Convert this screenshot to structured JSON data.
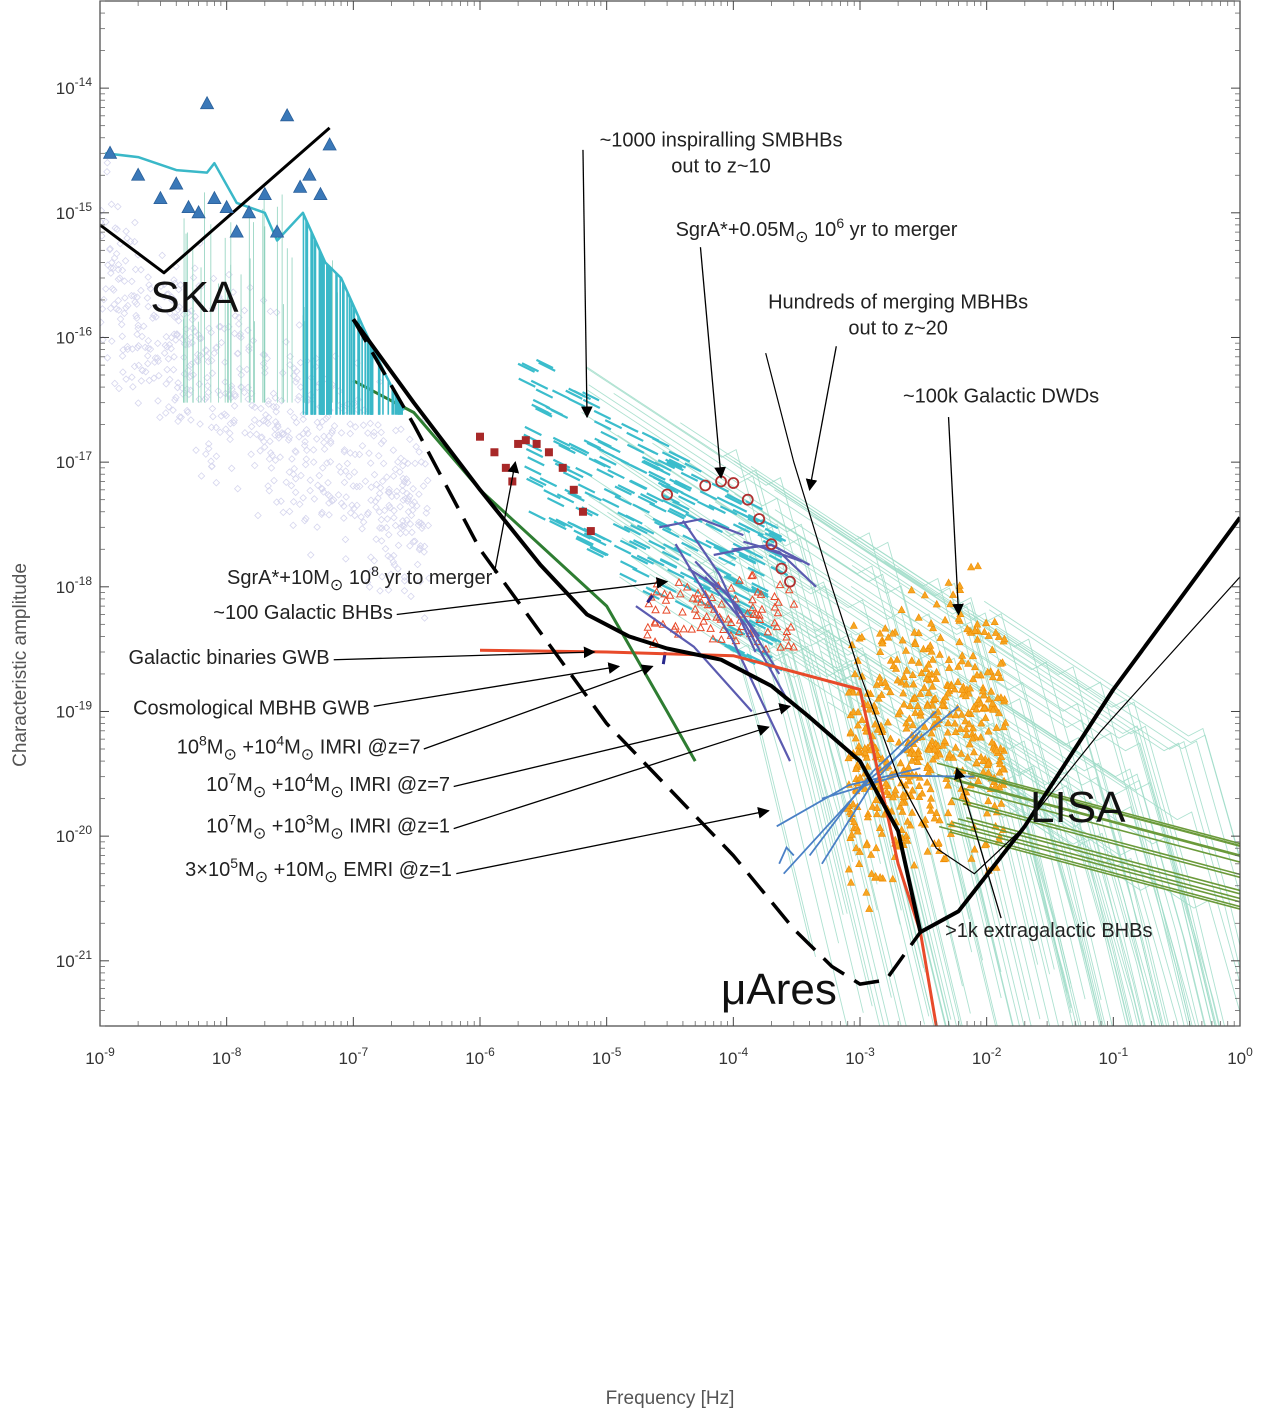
{
  "chart_data": {
    "type": "line",
    "xlabel": "Frequency [Hz]",
    "ylabel": "Characteristic amplitude",
    "x_scale": "log",
    "y_scale": "log",
    "xlim": [
      1e-09,
      1
    ],
    "ylim": [
      3e-22,
      5e-14
    ],
    "grid": false,
    "x_ticks": [
      {
        "value": 1e-09,
        "base": "10",
        "exp": "-9"
      },
      {
        "value": 1e-08,
        "base": "10",
        "exp": "-8"
      },
      {
        "value": 1e-07,
        "base": "10",
        "exp": "-7"
      },
      {
        "value": 1e-06,
        "base": "10",
        "exp": "-6"
      },
      {
        "value": 1e-05,
        "base": "10",
        "exp": "-5"
      },
      {
        "value": 0.0001,
        "base": "10",
        "exp": "-4"
      },
      {
        "value": 0.001,
        "base": "10",
        "exp": "-3"
      },
      {
        "value": 0.01,
        "base": "10",
        "exp": "-2"
      },
      {
        "value": 0.1,
        "base": "10",
        "exp": "-1"
      },
      {
        "value": 1,
        "base": "10",
        "exp": "0"
      }
    ],
    "y_ticks": [
      {
        "value": 1e-21,
        "base": "10",
        "exp": "-21"
      },
      {
        "value": 1e-20,
        "base": "10",
        "exp": "-20"
      },
      {
        "value": 1e-19,
        "base": "10",
        "exp": "-19"
      },
      {
        "value": 1e-18,
        "base": "10",
        "exp": "-18"
      },
      {
        "value": 1e-17,
        "base": "10",
        "exp": "-17"
      },
      {
        "value": 1e-16,
        "base": "10",
        "exp": "-16"
      },
      {
        "value": 1e-15,
        "base": "10",
        "exp": "-15"
      },
      {
        "value": 1e-14,
        "base": "10",
        "exp": "-14"
      }
    ],
    "detectors": [
      {
        "name": "SKA",
        "color": "#000000",
        "dashed": false,
        "width": 3,
        "points": [
          [
            1e-09,
            8e-16
          ],
          [
            3.2e-09,
            3.3e-16
          ],
          [
            6.5e-08,
            4.8e-15
          ]
        ],
        "label_at": [
          2.5e-09,
          1.6e-16
        ]
      },
      {
        "name": "LISA",
        "color": "#000000",
        "dashed": false,
        "width": 4,
        "points": [
          [
            1e-07,
            1.4e-16
          ],
          [
            3e-07,
            3e-17
          ],
          [
            1e-06,
            6e-18
          ],
          [
            3e-06,
            1.5e-18
          ],
          [
            7e-06,
            6e-19
          ],
          [
            1.5e-05,
            4e-19
          ],
          [
            3e-05,
            3.2e-19
          ],
          [
            8e-05,
            2.6e-19
          ],
          [
            0.0002,
            1.6e-19
          ],
          [
            0.0004,
            9e-20
          ],
          [
            0.001,
            4e-20
          ],
          [
            0.002,
            1.1e-20
          ],
          [
            0.003,
            1.7e-21
          ],
          [
            0.006,
            2.5e-21
          ],
          [
            0.02,
            1.2e-20
          ],
          [
            0.1,
            1.5e-19
          ],
          [
            1,
            3.6e-18
          ]
        ],
        "label_at": [
          0.022,
          1.3e-20
        ]
      },
      {
        "name": "μAres",
        "color": "#000000",
        "dashed": true,
        "width": 3.5,
        "points": [
          [
            1e-07,
            1.4e-16
          ],
          [
            3e-07,
            2e-17
          ],
          [
            1e-06,
            2e-18
          ],
          [
            1e-05,
            8e-20
          ],
          [
            0.0001,
            7e-21
          ],
          [
            0.0003,
            1.8e-21
          ],
          [
            0.0006,
            9e-22
          ],
          [
            0.001,
            6.5e-22
          ],
          [
            0.0016,
            7e-22
          ],
          [
            0.003,
            1.7e-21
          ]
        ],
        "label_at": [
          8e-05,
          4.5e-22
        ]
      }
    ],
    "series": [
      {
        "name": "Galactic binaries GWB",
        "color": "#e84a2a",
        "width": 3,
        "points": [
          [
            1e-06,
            3.1e-19
          ],
          [
            1e-05,
            3e-19
          ],
          [
            0.0001,
            2.8e-19
          ],
          [
            0.001,
            1.5e-19
          ],
          [
            0.002,
            6e-21
          ],
          [
            0.003,
            1.7e-21
          ],
          [
            0.004,
            3e-22
          ]
        ]
      },
      {
        "name": "Cosmological MBHB GWB",
        "color": "#2e7d32",
        "width": 3,
        "points": [
          [
            1e-07,
            4.5e-17
          ],
          [
            3e-07,
            2.5e-17
          ],
          [
            1e-06,
            6e-18
          ],
          [
            1e-05,
            7e-19
          ],
          [
            3e-05,
            1e-19
          ],
          [
            5e-05,
            4e-20
          ]
        ]
      },
      {
        "name": "",
        "color": "#3ab8c8",
        "width": 2.5,
        "points": [
          [
            1.1e-09,
            3e-15
          ],
          [
            2e-09,
            2.8e-15
          ],
          [
            4e-09,
            2.2e-15
          ],
          [
            7e-09,
            2.1e-15
          ],
          [
            8e-09,
            2.5e-15
          ],
          [
            1.2e-08,
            1.2e-15
          ],
          [
            2e-08,
            1e-15
          ],
          [
            2.5e-08,
            6e-16
          ],
          [
            4e-08,
            1e-15
          ],
          [
            6e-08,
            4e-16
          ],
          [
            8e-08,
            3e-16
          ],
          [
            1.2e-07,
            1.2e-16
          ],
          [
            1.8e-07,
            5e-17
          ],
          [
            2.5e-07,
            2.6e-17
          ]
        ]
      },
      {
        "name": "",
        "color": "#000000",
        "width": 1.2,
        "points": [
          [
            0.00018,
            7.5e-17
          ],
          [
            0.0003,
            1e-17
          ],
          [
            0.0006,
            1e-18
          ],
          [
            0.001,
            2e-19
          ],
          [
            0.002,
            3e-20
          ],
          [
            0.004,
            8e-21
          ],
          [
            0.008,
            5e-21
          ],
          [
            0.02,
            1.2e-20
          ],
          [
            0.08,
            7e-20
          ],
          [
            1,
            1.2e-18
          ]
        ]
      }
    ],
    "pta_points": [
      [
        1.2e-09,
        3e-15
      ],
      [
        2e-09,
        2e-15
      ],
      [
        3e-09,
        1.3e-15
      ],
      [
        4e-09,
        1.7e-15
      ],
      [
        5e-09,
        1.1e-15
      ],
      [
        7e-09,
        7.5e-15
      ],
      [
        6e-09,
        1e-15
      ],
      [
        8e-09,
        1.3e-15
      ],
      [
        1e-08,
        1.1e-15
      ],
      [
        1.2e-08,
        7e-16
      ],
      [
        1.5e-08,
        1e-15
      ],
      [
        2e-08,
        1.4e-15
      ],
      [
        2.5e-08,
        7e-16
      ],
      [
        3e-08,
        6e-15
      ],
      [
        3.8e-08,
        1.6e-15
      ],
      [
        4.5e-08,
        2e-15
      ],
      [
        5.5e-08,
        1.4e-15
      ],
      [
        6.5e-08,
        3.5e-15
      ]
    ],
    "sgra_10msun_points": [
      [
        1e-06,
        1.6e-17
      ],
      [
        1.3e-06,
        1.2e-17
      ],
      [
        1.6e-06,
        9e-18
      ],
      [
        1.8e-06,
        7e-18
      ],
      [
        2e-06,
        1.4e-17
      ],
      [
        2.3e-06,
        1.5e-17
      ],
      [
        2.8e-06,
        1.4e-17
      ],
      [
        3.5e-06,
        1.2e-17
      ],
      [
        4.5e-06,
        9e-18
      ],
      [
        5.5e-06,
        6e-18
      ],
      [
        6.5e-06,
        4e-18
      ],
      [
        7.5e-06,
        2.8e-18
      ]
    ],
    "sgra_005msun_points": [
      [
        3e-05,
        5.5e-18
      ],
      [
        6e-05,
        6.5e-18
      ],
      [
        8e-05,
        7e-18
      ],
      [
        0.0001,
        6.8e-18
      ],
      [
        0.00013,
        5e-18
      ],
      [
        0.00016,
        3.5e-18
      ],
      [
        0.0002,
        2.2e-18
      ],
      [
        0.00024,
        1.4e-18
      ],
      [
        0.00028,
        1.1e-18
      ]
    ],
    "annotations": [
      {
        "lines": [
          {
            "text": "~1000 inspiralling SMBHBs"
          },
          {
            "text": "out to z~10"
          }
        ],
        "anchor": "middle",
        "at": [
          8e-05,
          3.4e-15
        ],
        "arrow_from": [
          6.5e-06,
          3.2e-15
        ],
        "arrow_to": [
          7e-06,
          2.3e-17
        ]
      },
      {
        "lines": [
          {
            "parts": [
              {
                "t": "SgrA*+0.05M"
              },
              {
                "t": "⊙",
                "sub": true
              },
              {
                "t": "  10"
              },
              {
                "t": "6",
                "sup": true
              },
              {
                "t": " yr to merger"
              }
            ]
          }
        ],
        "anchor": "start",
        "at": [
          3.5e-05,
          6.5e-16
        ],
        "arrow_from": [
          5.5e-05,
          5.3e-16
        ],
        "arrow_to": [
          8e-05,
          7.5e-18
        ]
      },
      {
        "lines": [
          {
            "text": "Hundreds of merging MBHBs"
          },
          {
            "text": "out to z~20"
          }
        ],
        "anchor": "middle",
        "at": [
          0.002,
          1.7e-16
        ],
        "arrow_from": [
          0.00065,
          8.5e-17
        ],
        "arrow_to": [
          0.0004,
          6e-18
        ]
      },
      {
        "lines": [
          {
            "text": "~100k Galactic DWDs"
          }
        ],
        "anchor": "middle",
        "at": [
          0.013,
          3e-17
        ],
        "arrow_from": [
          0.005,
          2.3e-17
        ],
        "arrow_to": [
          0.006,
          6e-19
        ]
      },
      {
        "lines": [
          {
            "parts": [
              {
                "t": "SgrA*+10M"
              },
              {
                "t": "⊙",
                "sub": true
              },
              {
                "t": "  10"
              },
              {
                "t": "8",
                "sup": true
              },
              {
                "t": " yr to merger"
              }
            ]
          }
        ],
        "anchor": "end",
        "at": [
          1.25e-06,
          1.05e-18
        ],
        "arrow_from": [
          1.3e-06,
          1.3e-18
        ],
        "arrow_to": [
          1.9e-06,
          1e-17
        ]
      },
      {
        "lines": [
          {
            "text": "~100 Galactic BHBs"
          }
        ],
        "anchor": "end",
        "at": [
          2.05e-07,
          5.5e-19
        ],
        "arrow_from": [
          2.2e-07,
          6e-19
        ],
        "arrow_to": [
          3e-05,
          1.1e-18
        ]
      },
      {
        "lines": [
          {
            "text": "Galactic binaries GWB"
          }
        ],
        "anchor": "end",
        "at": [
          6.5e-08,
          2.4e-19
        ],
        "arrow_from": [
          7e-08,
          2.6e-19
        ],
        "arrow_to": [
          8e-06,
          3e-19
        ]
      },
      {
        "lines": [
          {
            "text": "Cosmological MBHB GWB"
          }
        ],
        "anchor": "end",
        "at": [
          1.35e-07,
          9.5e-20
        ],
        "arrow_from": [
          1.45e-07,
          1.1e-19
        ],
        "arrow_to": [
          1.25e-05,
          2.3e-19
        ]
      },
      {
        "lines": [
          {
            "parts": [
              {
                "t": "10"
              },
              {
                "t": "8",
                "sup": true
              },
              {
                "t": "M"
              },
              {
                "t": "⊙",
                "sub": true
              },
              {
                "t": " +10"
              },
              {
                "t": "4",
                "sup": true
              },
              {
                "t": "M"
              },
              {
                "t": "⊙",
                "sub": true
              },
              {
                "t": "  IMRI @z=7"
              }
            ]
          }
        ],
        "anchor": "end",
        "at": [
          3.4e-07,
          4.6e-20
        ],
        "arrow_from": [
          3.6e-07,
          5e-20
        ],
        "arrow_to": [
          2.3e-05,
          2.3e-19
        ]
      },
      {
        "lines": [
          {
            "parts": [
              {
                "t": "10"
              },
              {
                "t": "7",
                "sup": true
              },
              {
                "t": "M"
              },
              {
                "t": "⊙",
                "sub": true
              },
              {
                "t": " +10"
              },
              {
                "t": "4",
                "sup": true
              },
              {
                "t": "M"
              },
              {
                "t": "⊙",
                "sub": true
              },
              {
                "t": "  IMRI @z=7"
              }
            ]
          }
        ],
        "anchor": "end",
        "at": [
          5.8e-07,
          2.3e-20
        ],
        "arrow_from": [
          6.2e-07,
          2.5e-20
        ],
        "arrow_to": [
          0.00028,
          1.1e-19
        ]
      },
      {
        "lines": [
          {
            "parts": [
              {
                "t": "10"
              },
              {
                "t": "7",
                "sup": true
              },
              {
                "t": "M"
              },
              {
                "t": "⊙",
                "sub": true
              },
              {
                "t": " +10"
              },
              {
                "t": "3",
                "sup": true
              },
              {
                "t": "M"
              },
              {
                "t": "⊙",
                "sub": true
              },
              {
                "t": "  IMRI @z=1"
              }
            ]
          }
        ],
        "anchor": "end",
        "at": [
          5.8e-07,
          1.07e-20
        ],
        "arrow_from": [
          6.2e-07,
          1.15e-20
        ],
        "arrow_to": [
          0.00019,
          7.5e-20
        ]
      },
      {
        "lines": [
          {
            "parts": [
              {
                "t": "3×10"
              },
              {
                "t": "5",
                "sup": true
              },
              {
                "t": "M"
              },
              {
                "t": "⊙",
                "sub": true
              },
              {
                "t": " +10M"
              },
              {
                "t": "⊙",
                "sub": true
              },
              {
                "t": "  EMRI @z=1"
              }
            ]
          }
        ],
        "anchor": "end",
        "at": [
          6e-07,
          4.8e-21
        ],
        "arrow_from": [
          6.5e-07,
          5e-21
        ],
        "arrow_to": [
          0.00019,
          1.6e-20
        ]
      },
      {
        "lines": [
          {
            "text": ">1k extragalactic BHBs"
          }
        ],
        "anchor": "start",
        "at": [
          0.0047,
          1.55e-21
        ],
        "arrow_from": [
          0.013,
          2.2e-21
        ],
        "arrow_to": [
          0.0058,
          3.5e-20
        ]
      }
    ]
  }
}
